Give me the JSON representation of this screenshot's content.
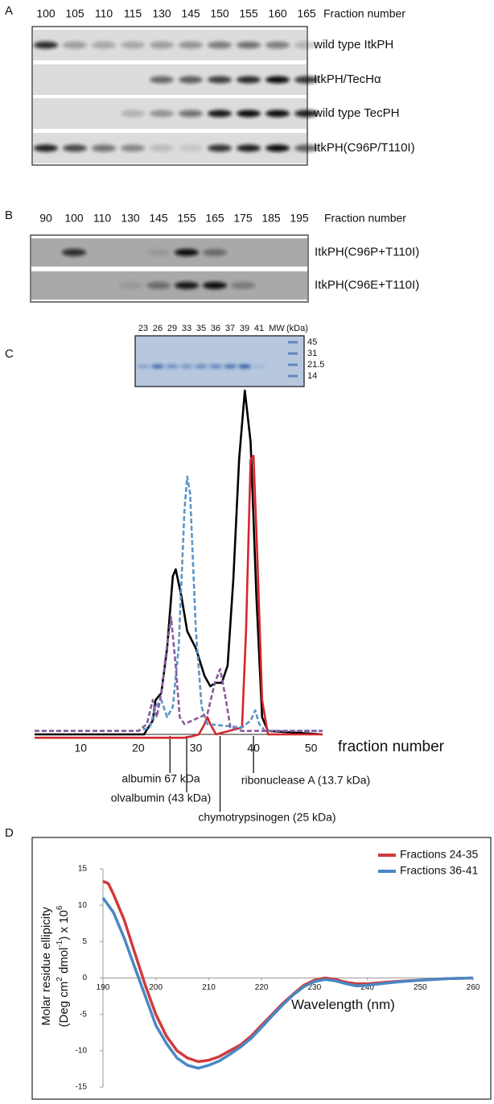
{
  "blots": [
    {
      "label": "A",
      "fractions": [
        100,
        105,
        110,
        115,
        130,
        145,
        150,
        155,
        160,
        165
      ],
      "axis_label": "Fraction number",
      "rows": [
        "wild type ItkPH",
        "ItkPH/TecHα",
        "wild type TecPH",
        "ItkPH(C96P/T110I)"
      ]
    },
    {
      "label": "B",
      "fractions": [
        90,
        100,
        110,
        130,
        145,
        155,
        165,
        175,
        185,
        195
      ],
      "axis_label": "Fraction number",
      "rows": [
        "ItkPH(C96P+T110I)",
        "ItkPH(C96E+T110I)"
      ]
    }
  ],
  "gel": {
    "lanes": [
      23,
      26,
      29,
      33,
      35,
      36,
      37,
      39,
      41
    ],
    "mw_label": "MW",
    "unit": "(kDa)",
    "markers": [
      45,
      31,
      21.5,
      14
    ]
  },
  "chart_data": [
    {
      "panel": "C",
      "type": "line",
      "xlabel": "fraction number",
      "xlim": [
        2,
        52
      ],
      "xticks": [
        10,
        20,
        30,
        40,
        50
      ],
      "ylim": [
        -2,
        100
      ],
      "series": [
        {
          "color": "#000000",
          "dash": false,
          "x": [
            2,
            21,
            22.5,
            23,
            24,
            25,
            26,
            26.5,
            27.5,
            28.5,
            30,
            31.5,
            32.5,
            33.5,
            34.5,
            35.5,
            36.5,
            37.5,
            38.5,
            39.5,
            40.5,
            41.5,
            42.5,
            52
          ],
          "values": [
            0,
            0,
            4,
            10,
            12,
            25,
            46,
            48,
            40,
            30,
            25,
            17,
            14,
            15,
            15,
            20,
            45,
            80,
            100,
            85,
            40,
            5,
            1,
            0
          ]
        },
        {
          "color": "#d7262b",
          "dash": false,
          "x": [
            2,
            28,
            29.5,
            30.5,
            31.5,
            32,
            32.5,
            33.5,
            38,
            38.7,
            39.5,
            40,
            40.7,
            41.5,
            42.5,
            52
          ],
          "values": [
            -1,
            -1,
            -0.5,
            0,
            3,
            5,
            3,
            0,
            2,
            30,
            80,
            81,
            50,
            10,
            0,
            0
          ]
        },
        {
          "color": "#5b96c8",
          "dash": true,
          "x": [
            2,
            20,
            22,
            23,
            24,
            25,
            26,
            27,
            28,
            28.5,
            29,
            30,
            31,
            32,
            38,
            39.5,
            40.3,
            41,
            42,
            52
          ],
          "values": [
            1,
            1,
            2,
            8,
            10,
            5,
            8,
            25,
            65,
            75,
            70,
            30,
            8,
            3,
            2,
            4,
            7,
            3,
            1,
            1
          ]
        },
        {
          "color": "#8a5a9c",
          "dash": true,
          "x": [
            2,
            20,
            21.5,
            22.5,
            23.2,
            24,
            25,
            25.7,
            26.5,
            27.2,
            28,
            32,
            33.3,
            34.2,
            35,
            36,
            38,
            52
          ],
          "values": [
            1,
            1,
            3,
            10,
            5,
            12,
            26,
            34,
            20,
            5,
            3,
            6,
            15,
            19,
            12,
            2,
            1,
            1
          ]
        }
      ],
      "annotations": [
        {
          "text": "albumin 67 kDa",
          "x": 25.5
        },
        {
          "text": "olvalbumin (43 kDa)",
          "x": 28.4
        },
        {
          "text": "chymotrypsinogen (25 kDa)",
          "x": 34.2
        },
        {
          "text": "ribonuclease A (13.7 kDa)",
          "x": 40
        }
      ]
    },
    {
      "panel": "D",
      "type": "line",
      "xlabel": "Wavelength (nm)",
      "ylabel": {
        "line1": "Molar residue ellipicity",
        "line2": [
          "(Deg cm",
          "2",
          " dmol",
          "-1",
          ") x 10",
          "6"
        ]
      },
      "x": [
        190,
        191,
        192,
        194,
        196,
        198,
        200,
        202,
        204,
        206,
        208,
        210,
        212,
        214,
        216,
        218,
        220,
        222,
        224,
        226,
        228,
        230,
        232,
        234,
        236,
        238,
        240,
        245,
        250,
        255,
        260
      ],
      "xlim": [
        190,
        260
      ],
      "xticks": [
        190,
        200,
        210,
        220,
        230,
        240,
        250,
        260
      ],
      "ylim": [
        -15,
        15
      ],
      "yticks": [
        15,
        10,
        5,
        0,
        -5,
        -10,
        -15
      ],
      "legend": "upper right",
      "series": [
        {
          "name": "Fractions 24-35",
          "color": "#d13b3d",
          "values": [
            13.3,
            13,
            11.5,
            8,
            3.5,
            -1,
            -5,
            -8,
            -10,
            -11,
            -11.5,
            -11.3,
            -10.8,
            -10,
            -9.2,
            -8,
            -6.5,
            -5,
            -3.5,
            -2.2,
            -1,
            -0.3,
            0,
            -0.2,
            -0.6,
            -0.8,
            -0.8,
            -0.5,
            -0.3,
            -0.1,
            0
          ]
        },
        {
          "name": "Fractions 36-41",
          "color": "#4a87c3",
          "values": [
            11,
            10,
            9,
            5.5,
            1.5,
            -2.5,
            -6.5,
            -9,
            -11,
            -12,
            -12.4,
            -12,
            -11.4,
            -10.5,
            -9.5,
            -8.3,
            -6.8,
            -5.2,
            -3.7,
            -2.3,
            -1.2,
            -0.5,
            -0.2,
            -0.4,
            -0.8,
            -1.1,
            -1,
            -0.6,
            -0.3,
            -0.1,
            0
          ]
        }
      ]
    }
  ]
}
